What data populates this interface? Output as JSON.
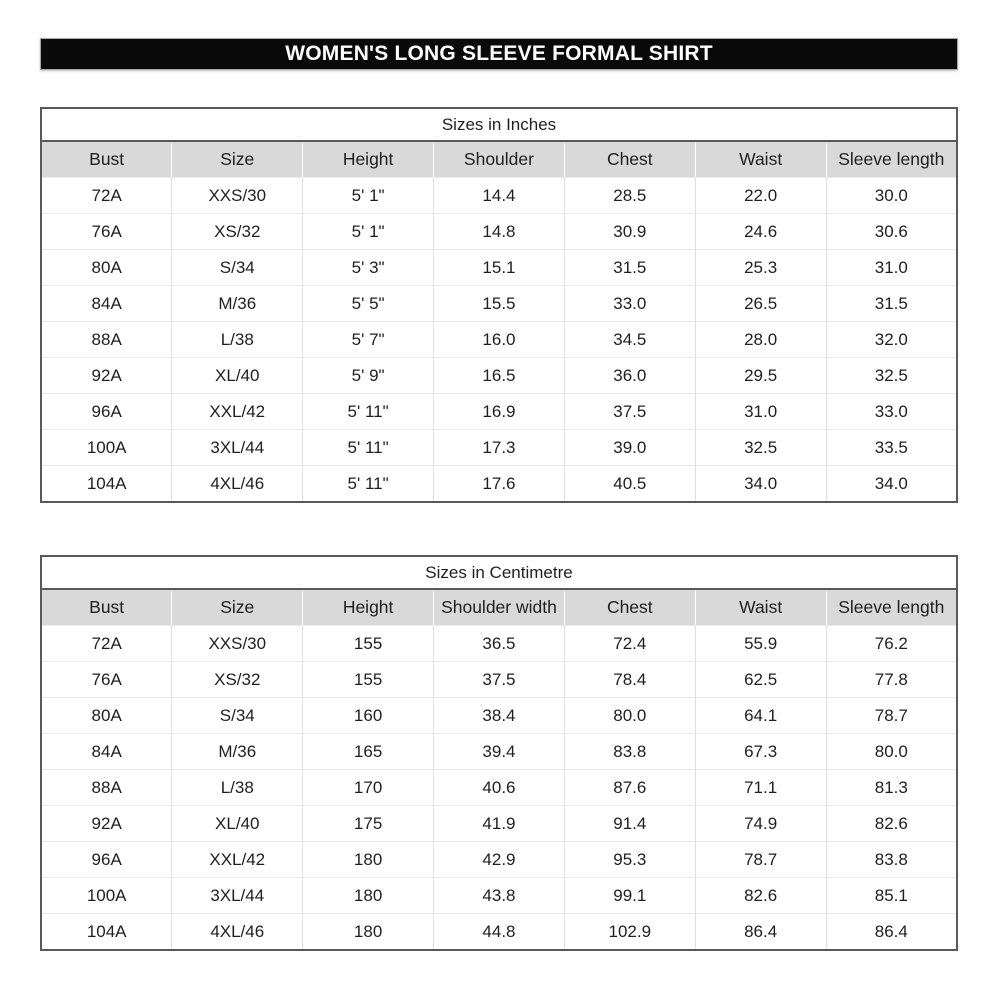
{
  "banner": {
    "title": "WOMEN'S LONG SLEEVE FORMAL SHIRT",
    "bg_color": "#0a0a0a",
    "text_color": "#ffffff"
  },
  "colors": {
    "header_row_bg": "#d9d9d9",
    "outer_border": "#595959",
    "grid_line": "#e0e0e0",
    "text": "#1f1f1f"
  },
  "tables": [
    {
      "title": "Sizes in Inches",
      "columns": [
        "Bust",
        "Size",
        "Height",
        "Shoulder",
        "Chest",
        "Waist",
        "Sleeve length"
      ],
      "rows": [
        [
          "72A",
          "XXS/30",
          "5' 1\"",
          "14.4",
          "28.5",
          "22.0",
          "30.0"
        ],
        [
          "76A",
          "XS/32",
          "5' 1\"",
          "14.8",
          "30.9",
          "24.6",
          "30.6"
        ],
        [
          "80A",
          "S/34",
          "5' 3\"",
          "15.1",
          "31.5",
          "25.3",
          "31.0"
        ],
        [
          "84A",
          "M/36",
          "5' 5\"",
          "15.5",
          "33.0",
          "26.5",
          "31.5"
        ],
        [
          "88A",
          "L/38",
          "5' 7\"",
          "16.0",
          "34.5",
          "28.0",
          "32.0"
        ],
        [
          "92A",
          "XL/40",
          "5' 9\"",
          "16.5",
          "36.0",
          "29.5",
          "32.5"
        ],
        [
          "96A",
          "XXL/42",
          "5' 11\"",
          "16.9",
          "37.5",
          "31.0",
          "33.0"
        ],
        [
          "100A",
          "3XL/44",
          "5' 11\"",
          "17.3",
          "39.0",
          "32.5",
          "33.5"
        ],
        [
          "104A",
          "4XL/46",
          "5' 11\"",
          "17.6",
          "40.5",
          "34.0",
          "34.0"
        ]
      ]
    },
    {
      "title": "Sizes in Centimetre",
      "columns": [
        "Bust",
        "Size",
        "Height",
        "Shoulder width",
        "Chest",
        "Waist",
        "Sleeve length"
      ],
      "rows": [
        [
          "72A",
          "XXS/30",
          "155",
          "36.5",
          "72.4",
          "55.9",
          "76.2"
        ],
        [
          "76A",
          "XS/32",
          "155",
          "37.5",
          "78.4",
          "62.5",
          "77.8"
        ],
        [
          "80A",
          "S/34",
          "160",
          "38.4",
          "80.0",
          "64.1",
          "78.7"
        ],
        [
          "84A",
          "M/36",
          "165",
          "39.4",
          "83.8",
          "67.3",
          "80.0"
        ],
        [
          "88A",
          "L/38",
          "170",
          "40.6",
          "87.6",
          "71.1",
          "81.3"
        ],
        [
          "92A",
          "XL/40",
          "175",
          "41.9",
          "91.4",
          "74.9",
          "82.6"
        ],
        [
          "96A",
          "XXL/42",
          "180",
          "42.9",
          "95.3",
          "78.7",
          "83.8"
        ],
        [
          "100A",
          "3XL/44",
          "180",
          "43.8",
          "99.1",
          "82.6",
          "85.1"
        ],
        [
          "104A",
          "4XL/46",
          "180",
          "44.8",
          "102.9",
          "86.4",
          "86.4"
        ]
      ]
    }
  ]
}
